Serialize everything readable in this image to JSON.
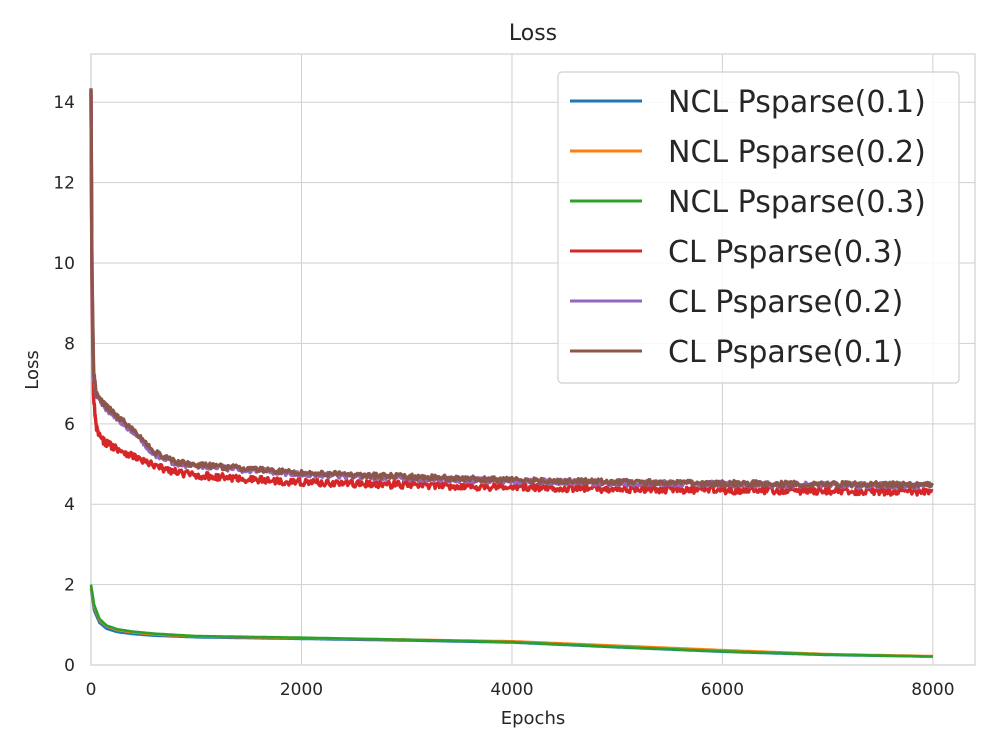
{
  "chart_data": {
    "type": "line",
    "title": "Loss",
    "xlabel": "Epochs",
    "ylabel": "Loss",
    "xlim": [
      0,
      8400
    ],
    "ylim": [
      0,
      15.2
    ],
    "xticks": [
      0,
      2000,
      4000,
      6000,
      8000
    ],
    "yticks": [
      0,
      2,
      4,
      6,
      8,
      10,
      12,
      14
    ],
    "xtick_labels": [
      "0",
      "2000",
      "4000",
      "6000",
      "8000"
    ],
    "ytick_labels": [
      "0",
      "2",
      "4",
      "6",
      "8",
      "10",
      "12",
      "14"
    ],
    "grid": true,
    "legend_position": "top-right",
    "series": [
      {
        "name": "NCL Psparse(0.1)",
        "color": "#1f77b4",
        "x": [
          0,
          30,
          80,
          150,
          250,
          400,
          600,
          1000,
          2000,
          3000,
          4000,
          5000,
          6000,
          7000,
          8000
        ],
        "y": [
          1.9,
          1.35,
          1.05,
          0.9,
          0.82,
          0.77,
          0.73,
          0.69,
          0.65,
          0.61,
          0.56,
          0.44,
          0.33,
          0.25,
          0.21
        ],
        "noise": 0
      },
      {
        "name": "NCL Psparse(0.2)",
        "color": "#ff7f0e",
        "x": [
          0,
          30,
          80,
          150,
          250,
          400,
          600,
          1000,
          2000,
          3000,
          4000,
          5000,
          6000,
          7000,
          8000
        ],
        "y": [
          1.95,
          1.45,
          1.12,
          0.96,
          0.87,
          0.81,
          0.76,
          0.71,
          0.67,
          0.63,
          0.59,
          0.48,
          0.37,
          0.27,
          0.22
        ],
        "noise": 0
      },
      {
        "name": "NCL Psparse(0.3)",
        "color": "#2ca02c",
        "x": [
          0,
          30,
          80,
          150,
          250,
          400,
          600,
          1000,
          2000,
          3000,
          4000,
          5000,
          6000,
          7000,
          8000
        ],
        "y": [
          2.0,
          1.5,
          1.15,
          0.98,
          0.89,
          0.83,
          0.78,
          0.72,
          0.68,
          0.63,
          0.57,
          0.45,
          0.34,
          0.26,
          0.21
        ],
        "noise": 0
      },
      {
        "name": "CL Psparse(0.3)",
        "color": "#d62728",
        "x": [
          0,
          10,
          25,
          50,
          100,
          200,
          400,
          600,
          800,
          1000,
          1500,
          2000,
          3000,
          4000,
          5000,
          6000,
          7000,
          8000
        ],
        "y": [
          14.2,
          9.0,
          6.6,
          5.9,
          5.6,
          5.45,
          5.2,
          4.95,
          4.8,
          4.72,
          4.62,
          4.55,
          4.48,
          4.42,
          4.38,
          4.35,
          4.33,
          4.3
        ],
        "noise": 0.09
      },
      {
        "name": "CL Psparse(0.2)",
        "color": "#9467bd",
        "x": [
          0,
          10,
          25,
          50,
          100,
          200,
          400,
          600,
          800,
          1000,
          1500,
          2000,
          3000,
          4000,
          5000,
          6000,
          7000,
          8000
        ],
        "y": [
          14.3,
          9.5,
          7.2,
          6.7,
          6.5,
          6.25,
          5.8,
          5.25,
          5.02,
          4.95,
          4.85,
          4.75,
          4.65,
          4.58,
          4.53,
          4.5,
          4.48,
          4.46
        ],
        "noise": 0.07
      },
      {
        "name": "CL Psparse(0.1)",
        "color": "#8c564b",
        "x": [
          0,
          10,
          25,
          50,
          100,
          200,
          400,
          600,
          800,
          1000,
          1500,
          2000,
          3000,
          4000,
          5000,
          6000,
          7000,
          8000
        ],
        "y": [
          14.35,
          9.6,
          7.3,
          6.75,
          6.55,
          6.3,
          5.85,
          5.3,
          5.05,
          4.98,
          4.88,
          4.78,
          4.68,
          4.6,
          4.55,
          4.52,
          4.5,
          4.48
        ],
        "noise": 0.07
      }
    ]
  }
}
